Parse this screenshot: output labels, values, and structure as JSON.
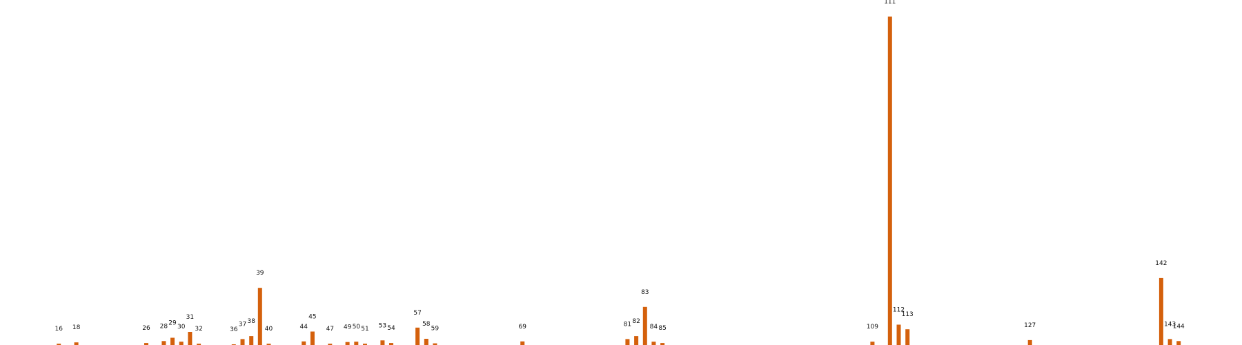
{
  "chart_data": {
    "type": "bar",
    "title": "",
    "xlabel": "",
    "ylabel": "",
    "grid": false,
    "bar_color": "#d4600c",
    "background": "#ffffff",
    "ylim": [
      0,
      100
    ],
    "x": [
      16,
      18,
      26,
      28,
      29,
      30,
      31,
      32,
      36,
      37,
      38,
      39,
      40,
      44,
      45,
      47,
      49,
      50,
      51,
      53,
      54,
      57,
      58,
      59,
      69,
      81,
      82,
      83,
      84,
      85,
      109,
      111,
      112,
      113,
      127,
      142,
      143,
      144
    ],
    "categories": [
      "16",
      "18",
      "26",
      "28",
      "29",
      "30",
      "31",
      "32",
      "36",
      "37",
      "38",
      "39",
      "40",
      "44",
      "45",
      "47",
      "49",
      "50",
      "51",
      "53",
      "54",
      "57",
      "58",
      "59",
      "69",
      "81",
      "82",
      "83",
      "84",
      "85",
      "109",
      "111",
      "112",
      "113",
      "127",
      "142",
      "143",
      "144"
    ],
    "values": [
      0.4,
      0.8,
      0.6,
      1.2,
      2.2,
      1.0,
      4.0,
      0.4,
      0.2,
      1.8,
      2.7,
      17.4,
      0.4,
      1.1,
      4.1,
      0.4,
      0.9,
      1.0,
      0.4,
      1.4,
      0.6,
      5.3,
      1.9,
      0.5,
      1.1,
      1.8,
      2.7,
      11.6,
      1.0,
      0.6,
      1.0,
      100.0,
      6.2,
      4.8,
      1.5,
      20.4,
      1.8,
      1.2
    ]
  }
}
